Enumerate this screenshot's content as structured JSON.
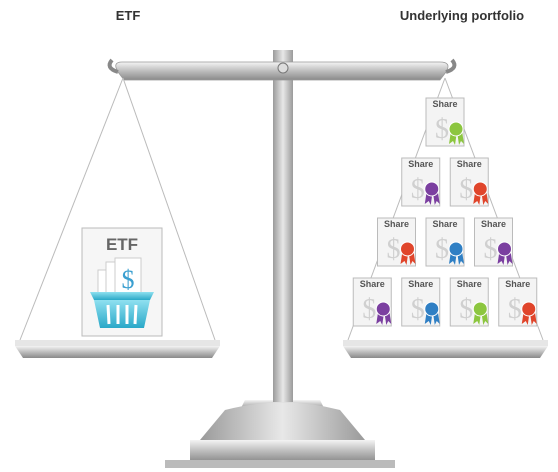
{
  "header": {
    "left": "ETF",
    "right": "Underlying portfolio"
  },
  "etf_card": {
    "label": "ETF"
  },
  "shares": [
    {
      "label": "Share",
      "ribbon": "#8cc63f"
    },
    {
      "label": "Share",
      "ribbon": "#7b3fa0"
    },
    {
      "label": "Share",
      "ribbon": "#e0452b"
    },
    {
      "label": "Share",
      "ribbon": "#e0452b"
    },
    {
      "label": "Share",
      "ribbon": "#2f7fc4"
    },
    {
      "label": "Share",
      "ribbon": "#7b3fa0"
    },
    {
      "label": "Share",
      "ribbon": "#7b3fa0"
    },
    {
      "label": "Share",
      "ribbon": "#2f7fc4"
    },
    {
      "label": "Share",
      "ribbon": "#8cc63f"
    },
    {
      "label": "Share",
      "ribbon": "#e0452b"
    }
  ]
}
